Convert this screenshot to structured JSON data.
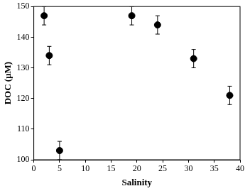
{
  "chart_data": {
    "type": "scatter",
    "x_label": "Salinity",
    "y_label": "DOC (μM)",
    "x": [
      2,
      3,
      5,
      19,
      24,
      31,
      38
    ],
    "values": [
      147,
      134,
      103,
      147,
      144,
      133,
      121
    ],
    "errors": [
      3,
      3,
      3,
      3,
      3,
      3,
      3
    ],
    "color": "#000000",
    "marker": "circle",
    "xlim": [
      0,
      40
    ],
    "xticks": [
      0,
      5,
      10,
      15,
      20,
      25,
      30,
      35,
      40
    ],
    "ylim": [
      100,
      150
    ],
    "yticks": [
      100,
      110,
      120,
      130,
      140,
      150
    ],
    "grid": false
  }
}
